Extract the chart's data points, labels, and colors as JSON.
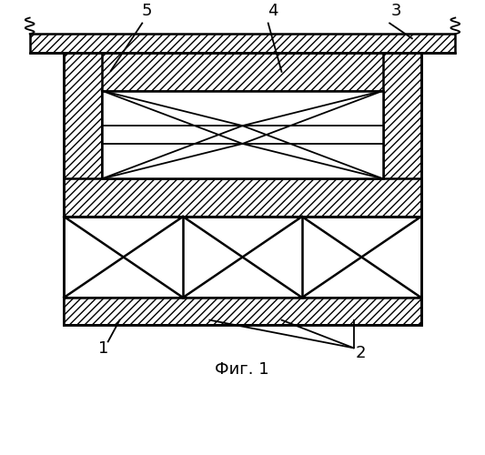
{
  "fig_width": 5.33,
  "fig_height": 5.0,
  "dpi": 100,
  "bg_color": "#ffffff",
  "line_color": "#000000",
  "caption": "Фиг. 1",
  "caption_fontsize": 13,
  "lw": 1.3,
  "lw_thick": 1.8
}
